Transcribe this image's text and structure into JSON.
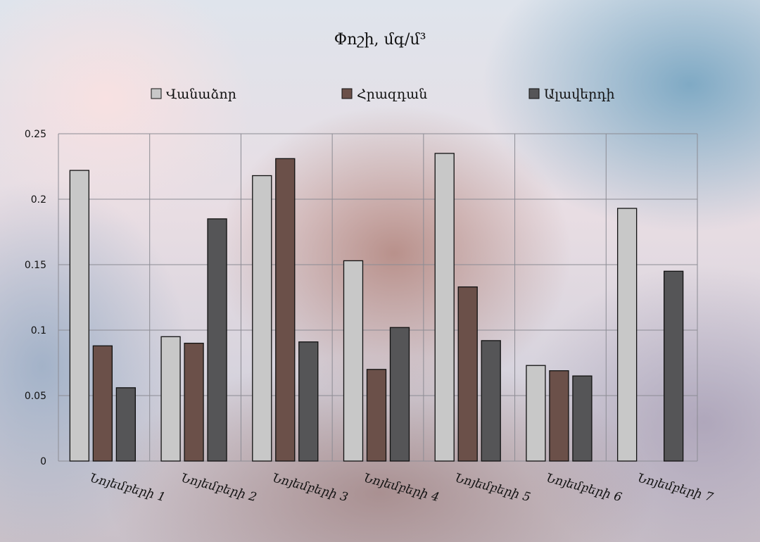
{
  "chart_data": {
    "type": "bar",
    "title": "Փոշի, մգ/մ³",
    "categories": [
      "Նոյեմբերի 1",
      "Նոյեմբերի 2",
      "Նոյեմբերի 3",
      "Նոյեմբերի 4",
      "Նոյեմբերի 5",
      "Նոյեմբերի 6",
      "Նոյեմբերի 7"
    ],
    "series": [
      {
        "name": "Վանաձոր",
        "color": "#c8c8c8",
        "values": [
          0.222,
          0.095,
          0.218,
          0.153,
          0.235,
          0.073,
          0.193
        ]
      },
      {
        "name": "Հրազդան",
        "color": "#6b5049",
        "values": [
          0.088,
          0.09,
          0.231,
          0.07,
          0.133,
          0.069,
          null
        ]
      },
      {
        "name": "Ալավերդի",
        "color": "#555557",
        "values": [
          0.056,
          0.185,
          0.091,
          0.102,
          0.092,
          0.065,
          0.145
        ]
      }
    ],
    "ylim": [
      0,
      0.25
    ],
    "yticks": [
      "0",
      "0.05",
      "0.1",
      "0.15",
      "0.2",
      "0.25"
    ],
    "grid": true,
    "legend_position": "top"
  }
}
